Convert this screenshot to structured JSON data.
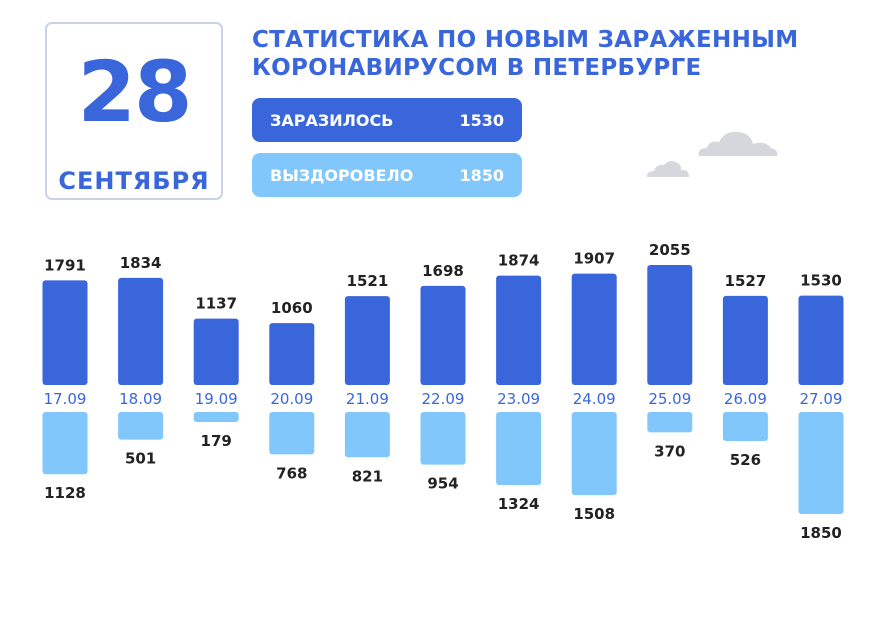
{
  "header": {
    "day": "28",
    "month": "СЕНТЯБРЯ",
    "title_line1": "СТАТИСТИКА ПО НОВЫМ ЗАРАЖЕННЫМ",
    "title_line2": "КОРОНАВИРУСОМ В ПЕТЕРБУРГЕ",
    "infected_label": "ЗАРАЗИЛОСЬ",
    "infected_value": "1530",
    "recovered_label": "ВЫЗДОРОВЕЛО",
    "recovered_value": "1850"
  },
  "colors": {
    "infected": "#3a66dc",
    "recovered": "#82c7fb",
    "cloud": "#d5d7dc"
  },
  "chart_data": {
    "type": "bar",
    "categories": [
      "17.09",
      "18.09",
      "19.09",
      "20.09",
      "21.09",
      "22.09",
      "23.09",
      "24.09",
      "25.09",
      "26.09",
      "27.09"
    ],
    "series": [
      {
        "name": "ЗАРАЗИЛОСЬ",
        "values": [
          1791,
          1834,
          1137,
          1060,
          1521,
          1698,
          1874,
          1907,
          2055,
          1527,
          1530
        ]
      },
      {
        "name": "ВЫЗДОРОВЕЛО",
        "values": [
          1128,
          501,
          179,
          768,
          821,
          954,
          1324,
          1508,
          370,
          526,
          1850
        ]
      }
    ],
    "legend": "top"
  }
}
